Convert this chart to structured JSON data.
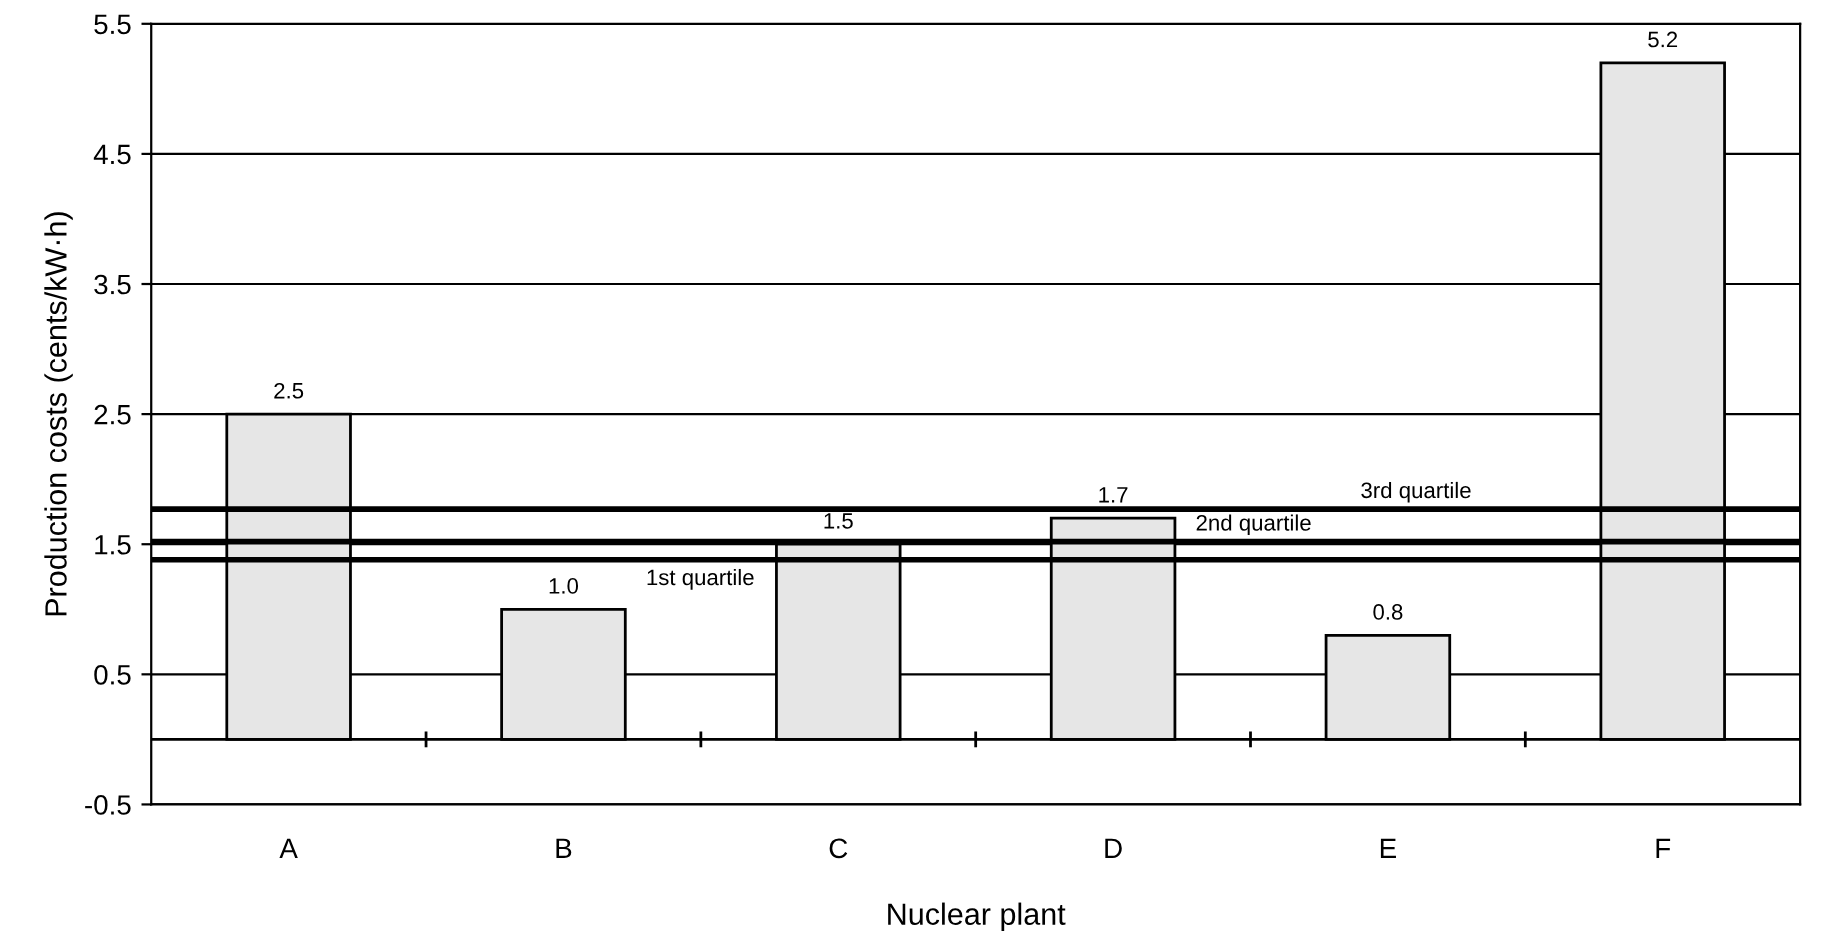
{
  "chart_data": {
    "type": "bar",
    "xlabel": "Nuclear plant",
    "ylabel": "Production costs (cents/kW·h)",
    "categories": [
      "A",
      "B",
      "C",
      "D",
      "E",
      "F"
    ],
    "values": [
      2.5,
      1.0,
      1.5,
      1.7,
      0.8,
      5.2
    ],
    "color": "#e6e6e6",
    "value_labels": [
      "2.5",
      "1.0",
      "1.5",
      "1.7",
      "0.8",
      "5.2"
    ],
    "ylim": [
      -0.5,
      5.5
    ],
    "yticks": [
      -0.5,
      0.5,
      1.5,
      2.5,
      3.5,
      4.5,
      5.5
    ],
    "grid": "y",
    "ref_lines": [
      {
        "axis": "y",
        "value": 0,
        "color": "#000000"
      },
      {
        "axis": "y",
        "value": 1.38,
        "label": "1st quartile",
        "color": "#000000"
      },
      {
        "axis": "y",
        "value": 1.52,
        "label": "2nd quartile",
        "color": "#000000"
      },
      {
        "axis": "y",
        "value": 1.77,
        "label": "3rd quartile",
        "color": "#000000"
      }
    ]
  }
}
